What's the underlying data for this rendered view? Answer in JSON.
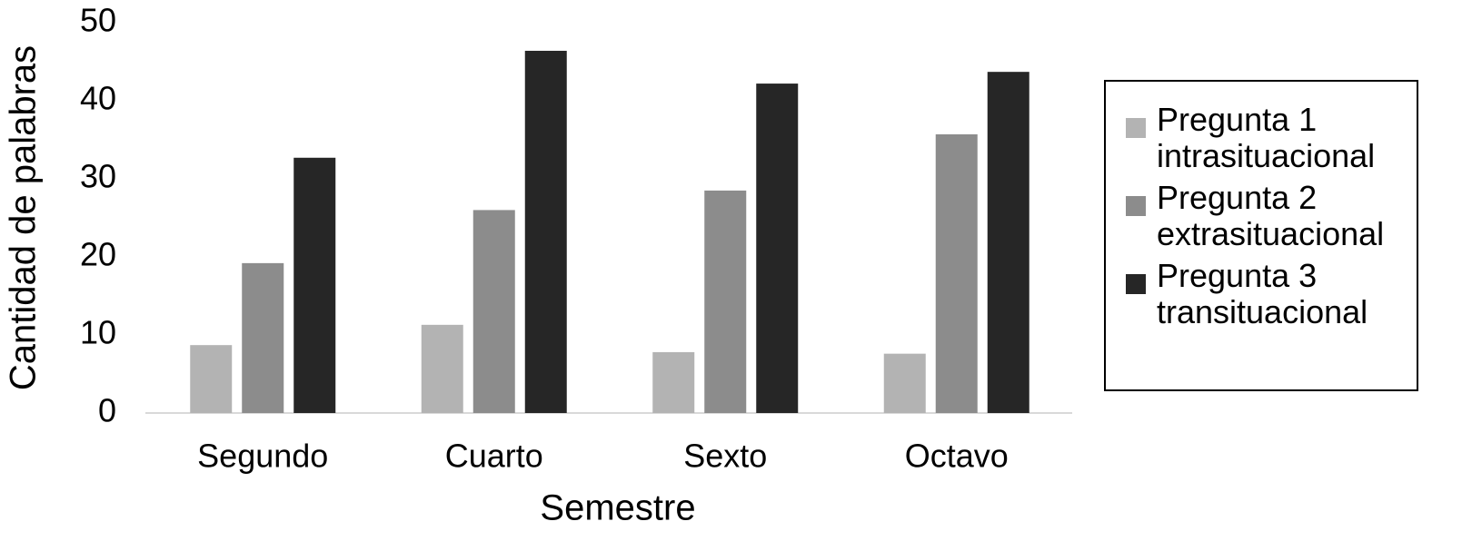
{
  "chart_data": {
    "type": "bar",
    "x_label": "Semestre",
    "y_label": "Cantidad de palabras",
    "categories": [
      "Segundo",
      "Cuarto",
      "Sexto",
      "Octavo"
    ],
    "series": [
      {
        "name": "Pregunta 1 intrasituacional",
        "color": "#b3b3b3",
        "values": [
          8.7,
          11.3,
          7.8,
          7.6
        ]
      },
      {
        "name": "Pregunta 2 extrasituacional",
        "color": "#8c8c8c",
        "values": [
          19.2,
          26,
          28.5,
          35.7
        ]
      },
      {
        "name": "Pregunta 3 transituacional",
        "color": "#262626",
        "values": [
          32.7,
          46.4,
          42.2,
          43.7
        ]
      }
    ],
    "ylim": [
      0,
      50
    ],
    "yticks": [
      0,
      10,
      20,
      30,
      40,
      50
    ],
    "grid": false,
    "legend": "right"
  }
}
